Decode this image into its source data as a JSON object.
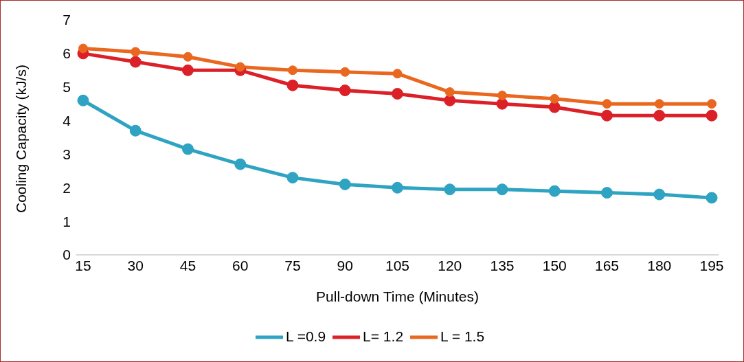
{
  "chart_data": {
    "type": "line",
    "xlabel": "Pull-down Time (Minutes)",
    "ylabel": "Cooling Capacity (kJ/s)",
    "categories": [
      "15",
      "30",
      "45",
      "60",
      "75",
      "90",
      "105",
      "120",
      "135",
      "150",
      "165",
      "180",
      "195"
    ],
    "series": [
      {
        "name": "L =0.9",
        "color": "#2ea3c2",
        "values": [
          4.6,
          3.7,
          3.15,
          2.7,
          2.3,
          2.1,
          2.0,
          1.95,
          1.95,
          1.9,
          1.85,
          1.8,
          1.7
        ]
      },
      {
        "name": "L= 1.2",
        "color": "#dc2028",
        "values": [
          6.0,
          5.75,
          5.5,
          5.5,
          5.05,
          4.9,
          4.8,
          4.6,
          4.5,
          4.4,
          4.15,
          4.15,
          4.15
        ]
      },
      {
        "name": "L = 1.5",
        "color": "#ea671f",
        "values": [
          6.15,
          6.05,
          5.9,
          5.6,
          5.5,
          5.45,
          5.4,
          4.85,
          4.75,
          4.65,
          4.5,
          4.5,
          4.5
        ]
      }
    ],
    "ylim": [
      0,
      7
    ],
    "yticks": [
      0,
      1,
      2,
      3,
      4,
      5,
      6,
      7
    ],
    "grid": false,
    "legend": "bottom",
    "marker": "circle",
    "line_style": "solid"
  }
}
